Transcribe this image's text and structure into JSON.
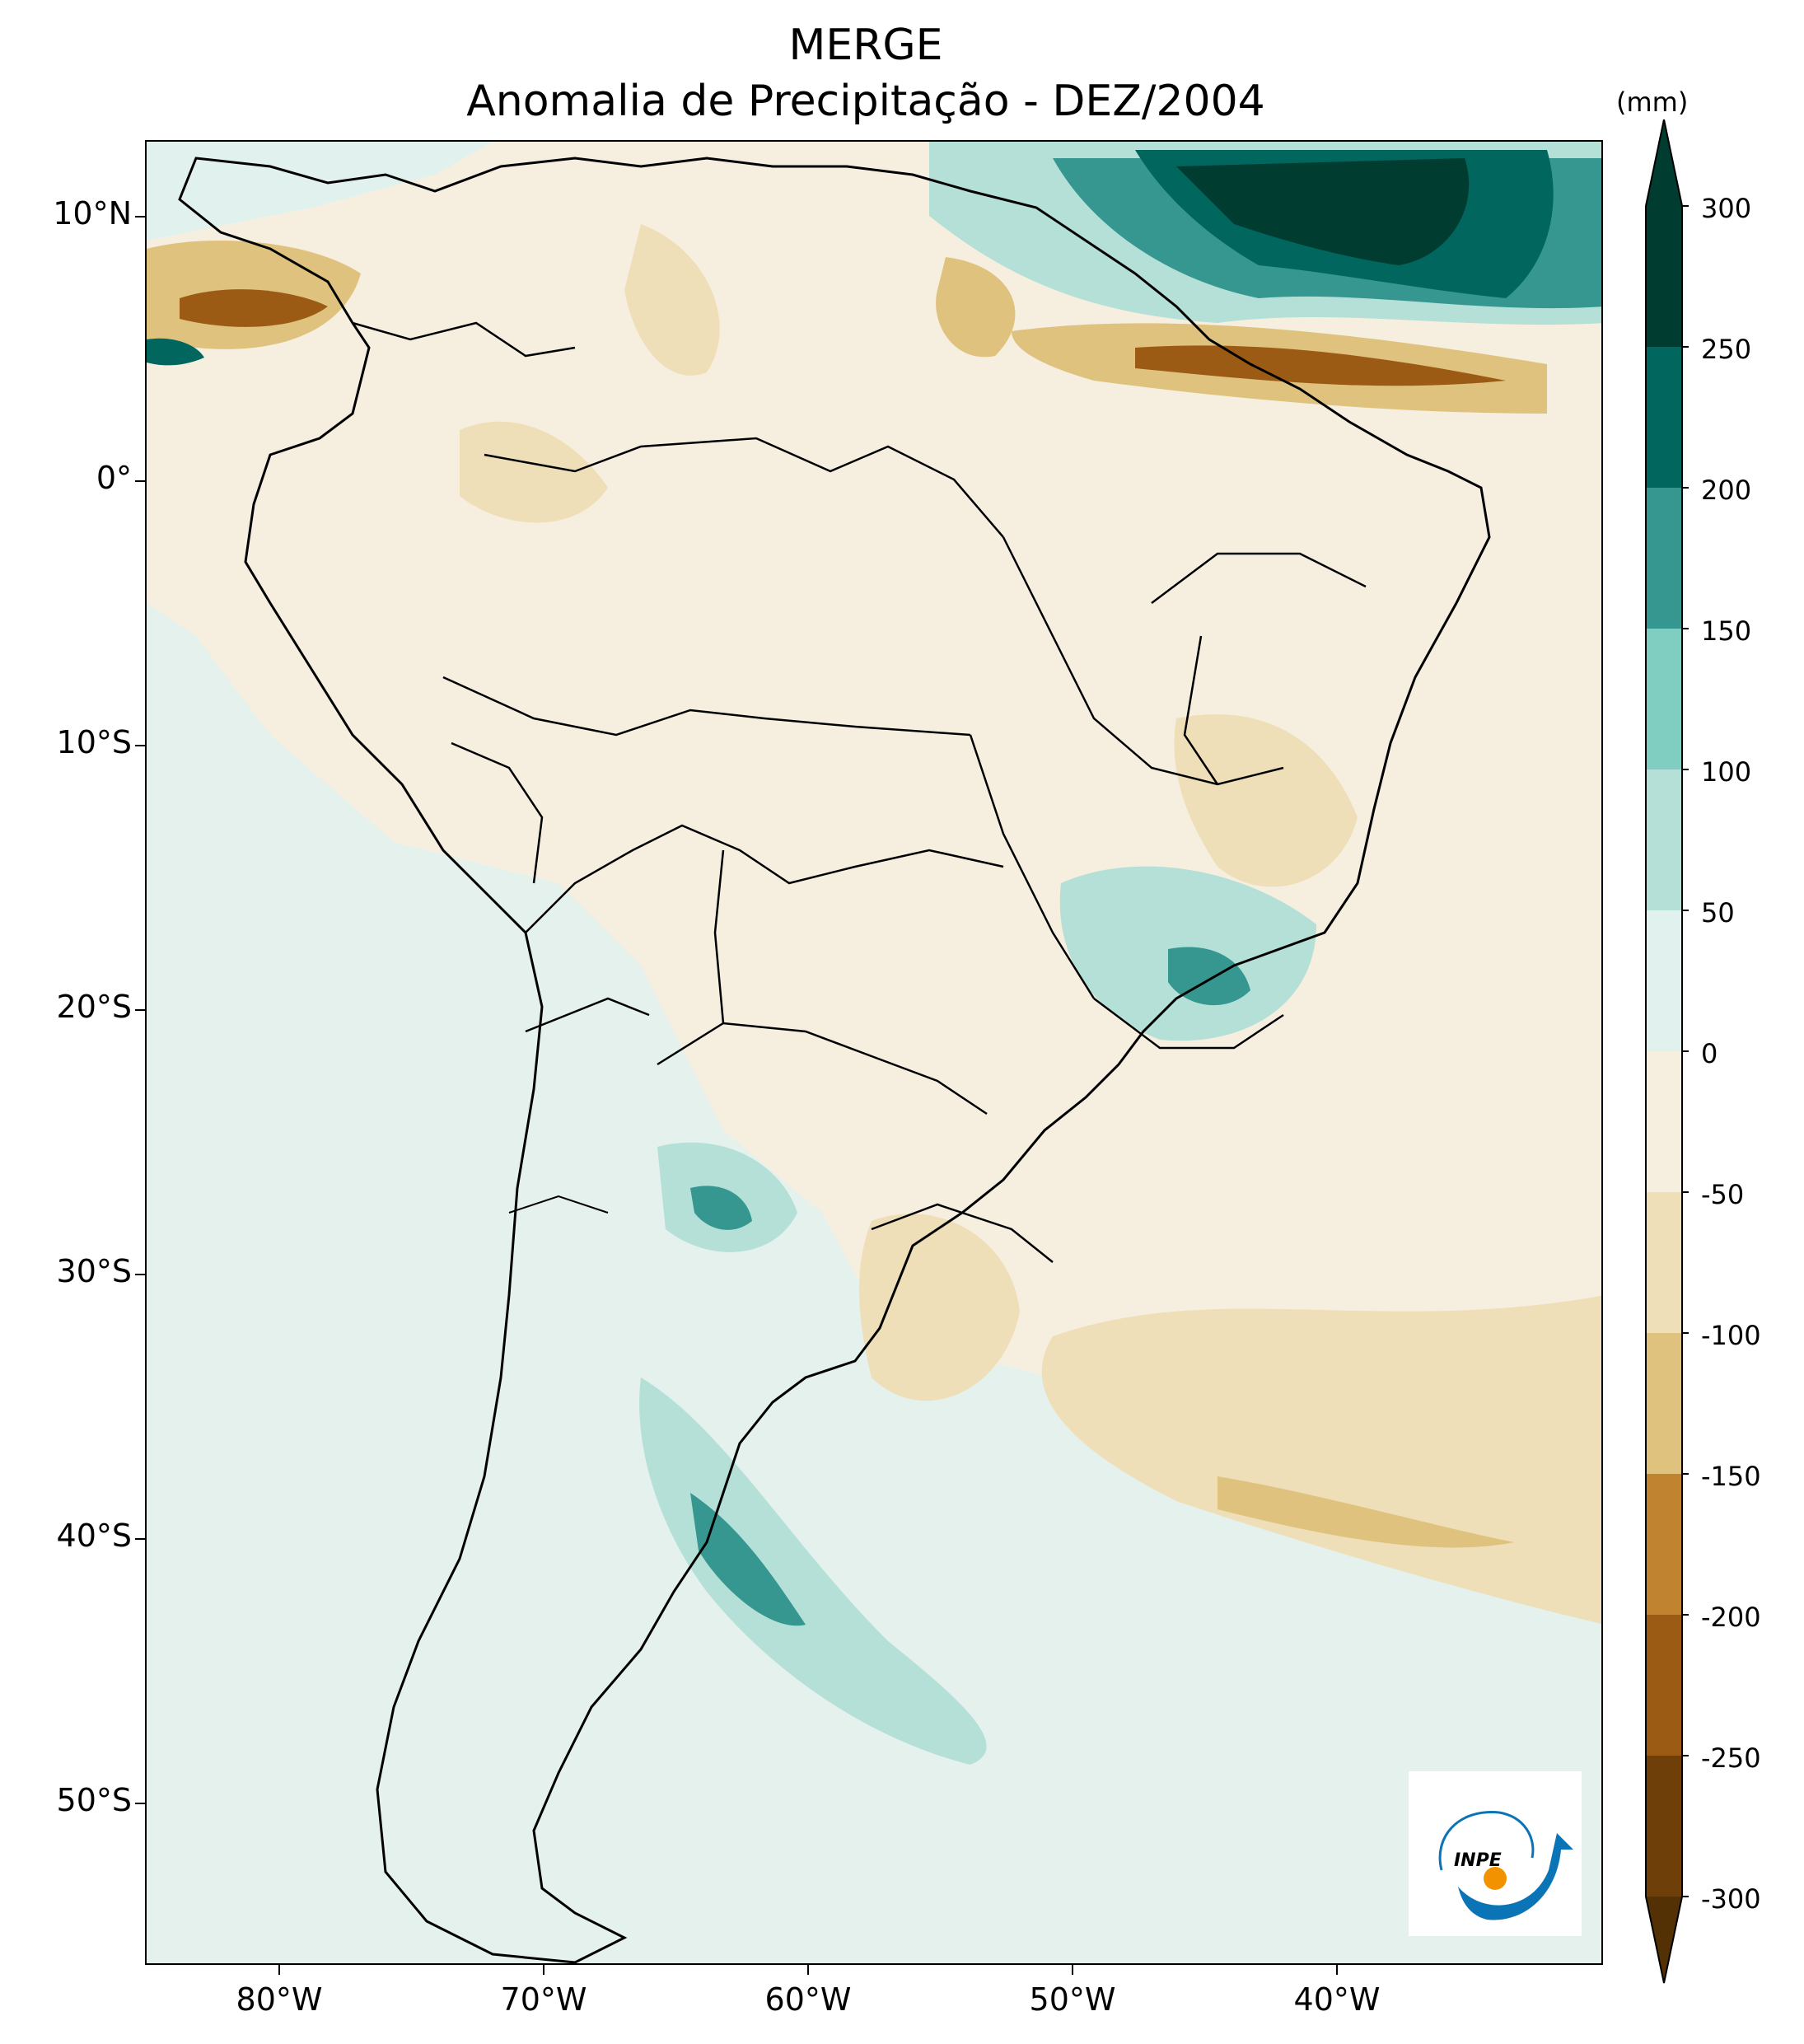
{
  "title": {
    "line1": "MERGE",
    "line2": "Anomalia de Precipitação - DEZ/2004"
  },
  "map": {
    "lat_labels": [
      "10°N",
      "0°",
      "10°S",
      "20°S",
      "30°S",
      "40°S",
      "50°S"
    ],
    "lat_values": [
      10,
      0,
      -10,
      -20,
      -30,
      -40,
      -50
    ],
    "lon_labels": [
      "80°W",
      "70°W",
      "60°W",
      "50°W",
      "40°W"
    ],
    "lon_values": [
      -80,
      -70,
      -60,
      -50,
      -40
    ],
    "extent": {
      "lon_min": -85,
      "lon_max": -30,
      "lat_min": -56,
      "lat_max": 13
    }
  },
  "colorbar": {
    "unit": "(mm)",
    "labels": [
      "300",
      "250",
      "200",
      "150",
      "100",
      "50",
      "0",
      "-50",
      "-100",
      "-150",
      "-200",
      "-250",
      "-300"
    ],
    "levels": [
      300,
      250,
      200,
      150,
      100,
      50,
      0,
      -50,
      -100,
      -150,
      -200,
      -250,
      -300
    ],
    "colors": [
      "#003c30",
      "#01665e",
      "#35978f",
      "#80cdc1",
      "#b4e0d8",
      "#e1f1ee",
      "#f6efe0",
      "#efdfb8",
      "#dfc27d",
      "#c08330",
      "#9c5b15",
      "#6e3f08"
    ],
    "extend_top_color": "#003c30",
    "extend_bottom_color": "#543005"
  },
  "logo": {
    "text": "INPE",
    "primary_color": "#0a74b6",
    "accent_color": "#f39200"
  }
}
